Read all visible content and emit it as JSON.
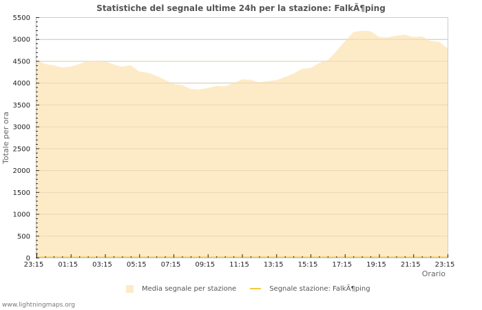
{
  "chart_data": {
    "type": "area",
    "title": "Statistiche del segnale ultime 24h per la stazione: FalkÃ¶ping",
    "xlabel": "Orario",
    "ylabel": "Totale per ora",
    "ylim": [
      0,
      5500
    ],
    "yticks": [
      0,
      500,
      1000,
      1500,
      2000,
      2500,
      3000,
      3500,
      4000,
      4500,
      5000,
      5500
    ],
    "xticks": [
      "23:15",
      "01:15",
      "03:15",
      "05:15",
      "07:15",
      "09:15",
      "11:15",
      "13:15",
      "15:15",
      "17:15",
      "19:15",
      "21:15",
      "23:15"
    ],
    "grid": true,
    "legend_position": "bottom",
    "series": [
      {
        "name": "Media segnale per stazione",
        "type": "area",
        "color": "#fdebc8",
        "x": [
          "23:15",
          "23:45",
          "00:15",
          "00:45",
          "01:15",
          "01:45",
          "02:15",
          "02:45",
          "03:15",
          "03:45",
          "04:15",
          "04:45",
          "05:15",
          "05:45",
          "06:15",
          "06:45",
          "07:15",
          "07:45",
          "08:15",
          "08:45",
          "09:15",
          "09:45",
          "10:15",
          "10:45",
          "11:15",
          "11:45",
          "12:15",
          "12:45",
          "13:15",
          "13:45",
          "14:15",
          "14:45",
          "15:15",
          "15:45",
          "16:15",
          "16:45",
          "17:15",
          "17:45",
          "18:15",
          "18:45",
          "19:15",
          "19:45",
          "20:15",
          "20:45",
          "21:15",
          "21:45",
          "22:15",
          "22:45",
          "23:15"
        ],
        "values": [
          4520,
          4430,
          4400,
          4350,
          4370,
          4430,
          4500,
          4500,
          4490,
          4420,
          4370,
          4400,
          4260,
          4230,
          4160,
          4070,
          3970,
          3950,
          3860,
          3850,
          3880,
          3930,
          3920,
          3990,
          4080,
          4070,
          4010,
          4040,
          4060,
          4130,
          4210,
          4320,
          4340,
          4450,
          4520,
          4720,
          4950,
          5160,
          5190,
          5180,
          5050,
          5040,
          5080,
          5100,
          5050,
          5060,
          4960,
          4940,
          4790
        ]
      },
      {
        "name": "Segnale stazione: FalkÃ¶ping",
        "type": "line",
        "color": "#f5c842",
        "values": [
          0,
          0,
          0,
          0,
          0,
          0,
          0,
          0,
          0,
          0,
          0,
          0,
          0,
          0,
          0,
          0,
          0,
          0,
          0,
          0,
          0,
          0,
          0,
          0,
          0,
          0,
          0,
          0,
          0,
          0,
          0,
          0,
          0,
          0,
          0,
          0,
          0,
          0,
          0,
          0,
          0,
          0,
          0,
          0,
          0,
          0,
          0,
          0,
          0
        ]
      }
    ]
  },
  "header": {
    "title": "Statistiche del segnale ultime 24h per la stazione: FalkÃ¶ping"
  },
  "axes": {
    "ylabel": "Totale per ora",
    "xlabel": "Orario"
  },
  "legend": {
    "items": [
      {
        "label": "Media segnale per stazione",
        "icon": "area-swatch"
      },
      {
        "label": "Segnale stazione: FalkÃ¶ping",
        "icon": "line-swatch"
      }
    ]
  },
  "footer": {
    "credit": "www.lightningmaps.org"
  }
}
